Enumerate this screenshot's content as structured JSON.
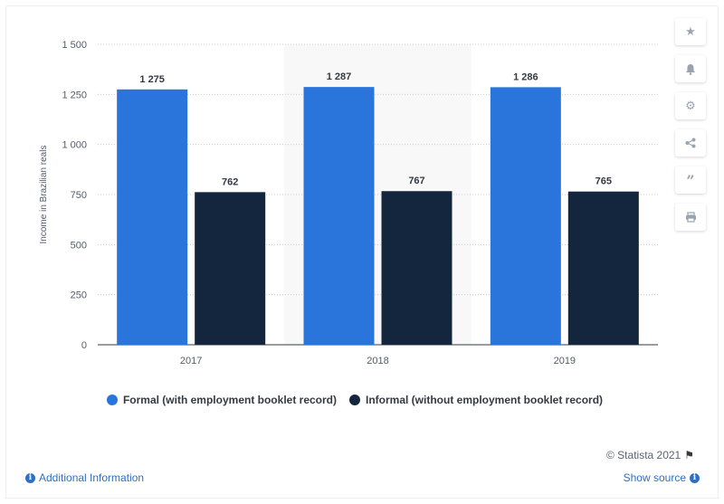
{
  "chart_data": {
    "type": "bar",
    "categories": [
      "2017",
      "2018",
      "2019"
    ],
    "series": [
      {
        "name": "Formal (with employment booklet record)",
        "values": [
          1275,
          1287,
          1286
        ],
        "color": "#2a75dc"
      },
      {
        "name": "Informal (without employment booklet record)",
        "values": [
          762,
          767,
          765
        ],
        "color": "#13263d"
      }
    ],
    "value_labels": [
      [
        "1 275",
        "1 287",
        "1 286"
      ],
      [
        "762",
        "767",
        "765"
      ]
    ],
    "ylabel": "Income in Brazilian reals",
    "xlabel": "",
    "ylim": [
      0,
      1500
    ],
    "yticks": [
      0,
      250,
      500,
      750,
      1000,
      1250,
      1500
    ],
    "ytick_labels": [
      "0",
      "250",
      "500",
      "750",
      "1 000",
      "1 250",
      "1 500"
    ],
    "grid": true,
    "legend_position": "bottom",
    "highlighted_category": "2018"
  },
  "toolbar": {
    "icons": [
      "star-icon",
      "bell-icon",
      "gear-icon",
      "share-icon",
      "quote-icon",
      "print-icon"
    ]
  },
  "footer": {
    "copyright": "© Statista 2021",
    "additional_info": "Additional Information",
    "show_source": "Show source"
  }
}
